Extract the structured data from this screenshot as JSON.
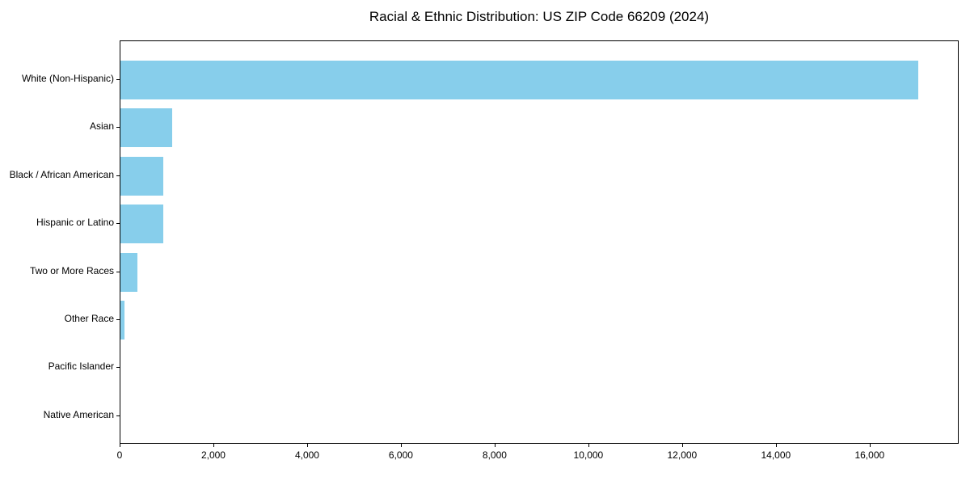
{
  "title": "Racial & Ethnic Distribution: US ZIP Code 66209 (2024)",
  "chart_data": {
    "type": "bar",
    "orientation": "horizontal",
    "title": "Racial & Ethnic Distribution: US ZIP Code 66209 (2024)",
    "xlabel": "",
    "ylabel": "",
    "categories": [
      "White (Non-Hispanic)",
      "Asian",
      "Black / African American",
      "Hispanic or Latino",
      "Two or More Races",
      "Other Race",
      "Pacific Islander",
      "Native American"
    ],
    "values": [
      17050,
      1100,
      910,
      910,
      360,
      85,
      0,
      0
    ],
    "xlim": [
      0,
      17900
    ],
    "x_ticks": [
      0,
      2000,
      4000,
      6000,
      8000,
      10000,
      12000,
      14000,
      16000
    ],
    "x_tick_labels": [
      "0",
      "2,000",
      "4,000",
      "6,000",
      "8,000",
      "10,000",
      "12,000",
      "14,000",
      "16,000"
    ],
    "bar_color": "#87CEEB",
    "background_color": "#ffffff",
    "grid": false,
    "legend_position": "none"
  }
}
